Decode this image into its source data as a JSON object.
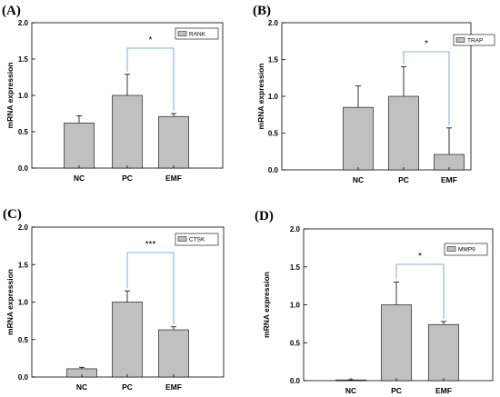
{
  "chart_data": [
    {
      "type": "bar",
      "panel_label": "(A)",
      "legend": "RANK",
      "legend_position": "top-right",
      "ylabel": "mRNA expression",
      "ylim": [
        0,
        2.0
      ],
      "yticks": [
        "0.0",
        "0.5",
        "1.0",
        "1.5",
        "2.0"
      ],
      "categories": [
        "NC",
        "PC",
        "EMF"
      ],
      "values": [
        0.62,
        1.0,
        0.71
      ],
      "errors": [
        0.1,
        0.29,
        0.04
      ],
      "significance": {
        "from": "PC",
        "to": "EMF",
        "label": "*"
      },
      "grid": false
    },
    {
      "type": "bar",
      "panel_label": "(B)",
      "legend": "TRAP",
      "legend_position": "top-right",
      "ylabel": "mRNA expression",
      "ylim": [
        0,
        2.0
      ],
      "yticks": [
        "0.0",
        "0.5",
        "1.0",
        "1.5",
        "2.0"
      ],
      "categories": [
        "NC",
        "PC",
        "EMF"
      ],
      "values": [
        0.85,
        1.0,
        0.21
      ],
      "errors": [
        0.29,
        0.4,
        0.36
      ],
      "significance": {
        "from": "PC",
        "to": "EMF",
        "label": "*"
      },
      "grid": false
    },
    {
      "type": "bar",
      "panel_label": "(C)",
      "legend": "CTSK",
      "legend_position": "top-right",
      "ylabel": "mRNA expression",
      "ylim": [
        0,
        2.0
      ],
      "yticks": [
        "0.0",
        "0.5",
        "1.0",
        "1.5",
        "2.0"
      ],
      "categories": [
        "NC",
        "PC",
        "EMF"
      ],
      "values": [
        0.11,
        1.0,
        0.63
      ],
      "errors": [
        0.02,
        0.15,
        0.04
      ],
      "significance": {
        "from": "PC",
        "to": "EMF",
        "label": "***"
      },
      "grid": false
    },
    {
      "type": "bar",
      "panel_label": "(D)",
      "legend": "MMP9",
      "legend_position": "top-right",
      "ylabel": "mRNA expression",
      "ylim": [
        0,
        2.0
      ],
      "yticks": [
        "0.0",
        "0.5",
        "1.0",
        "1.5",
        "2.0"
      ],
      "categories": [
        "NC",
        "PC",
        "EMF"
      ],
      "values": [
        0.01,
        1.0,
        0.74
      ],
      "errors": [
        0.003,
        0.3,
        0.04
      ],
      "significance": {
        "from": "PC",
        "to": "EMF",
        "label": "*"
      },
      "grid": false
    }
  ],
  "colors": {
    "bar_fill": "#c0c0c0",
    "bar_stroke": "#000000",
    "significance_line": "#5b9bd5",
    "axis": "#000000"
  }
}
